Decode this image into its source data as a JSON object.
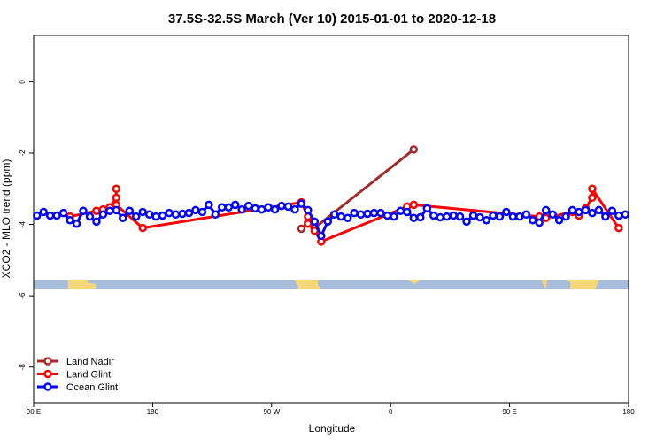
{
  "chart_data": {
    "type": "line",
    "title": "37.5S-32.5S March (Ver 10)   2015-01-01 to 2020-12-18",
    "xlabel": "Longitude",
    "ylabel": "XCO2 - MLO trend (ppm)",
    "x_ticks": [
      {
        "value": 90,
        "label": "90 E"
      },
      {
        "value": 180,
        "label": "180"
      },
      {
        "value": 270,
        "label": "90 W"
      },
      {
        "value": 360,
        "label": "0"
      },
      {
        "value": 450,
        "label": "90 E"
      },
      {
        "value": 540,
        "label": "180"
      }
    ],
    "y_ticks": [
      0,
      -2,
      -4,
      -6,
      -8
    ],
    "xlim": [
      90,
      540
    ],
    "ylim": [
      -9.0,
      1.3
    ],
    "grid": false,
    "legend_position": "bottom-left",
    "map_strip": {
      "ocean_color": "#A8BCDB",
      "land_color": "#F5D77A",
      "y_range": [
        -5.8,
        -5.55
      ]
    },
    "series": [
      {
        "name": "Land Nadir",
        "color": "#A52A2A",
        "x": [
          292.5,
          297.5,
          302.5,
          377.5
        ],
        "y": [
          -4.12,
          -3.95,
          -4.1,
          -1.9
        ]
      },
      {
        "name": "Land Glint",
        "color": "#FF0000",
        "x": [
          117.5,
          137.5,
          142.5,
          147.5,
          152.5,
          152.5,
          152.5,
          172.5,
          292.5,
          297.5,
          297.5,
          302.5,
          307.5,
          372.5,
          377.5,
          472.5,
          477.5,
          497.5,
          502.5,
          507.5,
          512.5,
          512.5,
          532.5
        ],
        "y": [
          -3.78,
          -3.62,
          -3.58,
          -3.52,
          -3.25,
          -3.0,
          -3.45,
          -4.1,
          -3.38,
          -3.78,
          -3.98,
          -4.18,
          -4.48,
          -3.5,
          -3.45,
          -3.78,
          -3.82,
          -3.65,
          -3.75,
          -3.55,
          -3.25,
          -3.0,
          -4.1
        ]
      },
      {
        "name": "Ocean Glint",
        "color": "#0000FF",
        "x": [
          92.5,
          97.5,
          102.5,
          107.5,
          112.5,
          117.5,
          122.5,
          127.5,
          132.5,
          137.5,
          142.5,
          147.5,
          152.5,
          157.5,
          162.5,
          167.5,
          172.5,
          177.5,
          182.5,
          187.5,
          192.5,
          197.5,
          202.5,
          207.5,
          212.5,
          217.5,
          222.5,
          227.5,
          232.5,
          237.5,
          242.5,
          247.5,
          252.5,
          257.5,
          262.5,
          267.5,
          272.5,
          277.5,
          282.5,
          287.5,
          292.5,
          297.5,
          302.5,
          307.5,
          312.5,
          317.5,
          322.5,
          327.5,
          332.5,
          337.5,
          342.5,
          347.5,
          352.5,
          357.5,
          362.5,
          367.5,
          372.5,
          377.5,
          382.5,
          387.5,
          392.5,
          397.5,
          402.5,
          407.5,
          412.5,
          417.5,
          422.5,
          427.5,
          432.5,
          437.5,
          442.5,
          447.5,
          452.5,
          457.5,
          462.5,
          467.5,
          472.5,
          477.5,
          482.5,
          487.5,
          492.5,
          497.5,
          502.5,
          507.5,
          512.5,
          517.5,
          522.5,
          527.5,
          532.5,
          537.5
        ],
        "y": [
          -3.75,
          -3.65,
          -3.75,
          -3.75,
          -3.68,
          -3.88,
          -3.98,
          -3.62,
          -3.78,
          -3.92,
          -3.72,
          -3.62,
          -3.6,
          -3.82,
          -3.62,
          -3.78,
          -3.65,
          -3.72,
          -3.78,
          -3.75,
          -3.68,
          -3.72,
          -3.7,
          -3.68,
          -3.6,
          -3.65,
          -3.45,
          -3.72,
          -3.52,
          -3.52,
          -3.45,
          -3.58,
          -3.48,
          -3.55,
          -3.58,
          -3.52,
          -3.58,
          -3.48,
          -3.5,
          -3.58,
          -3.42,
          -3.6,
          -3.92,
          -4.32,
          -3.92,
          -3.72,
          -3.78,
          -3.82,
          -3.68,
          -3.72,
          -3.7,
          -3.68,
          -3.68,
          -3.75,
          -3.78,
          -3.62,
          -3.65,
          -3.82,
          -3.8,
          -3.55,
          -3.75,
          -3.8,
          -3.78,
          -3.75,
          -3.78,
          -3.92,
          -3.75,
          -3.8,
          -3.88,
          -3.75,
          -3.78,
          -3.65,
          -3.78,
          -3.78,
          -3.72,
          -3.88,
          -3.95,
          -3.6,
          -3.72,
          -3.88,
          -3.78,
          -3.6,
          -3.65,
          -3.6,
          -3.68,
          -3.6,
          -3.78,
          -3.62,
          -3.75,
          -3.72
        ]
      }
    ]
  }
}
